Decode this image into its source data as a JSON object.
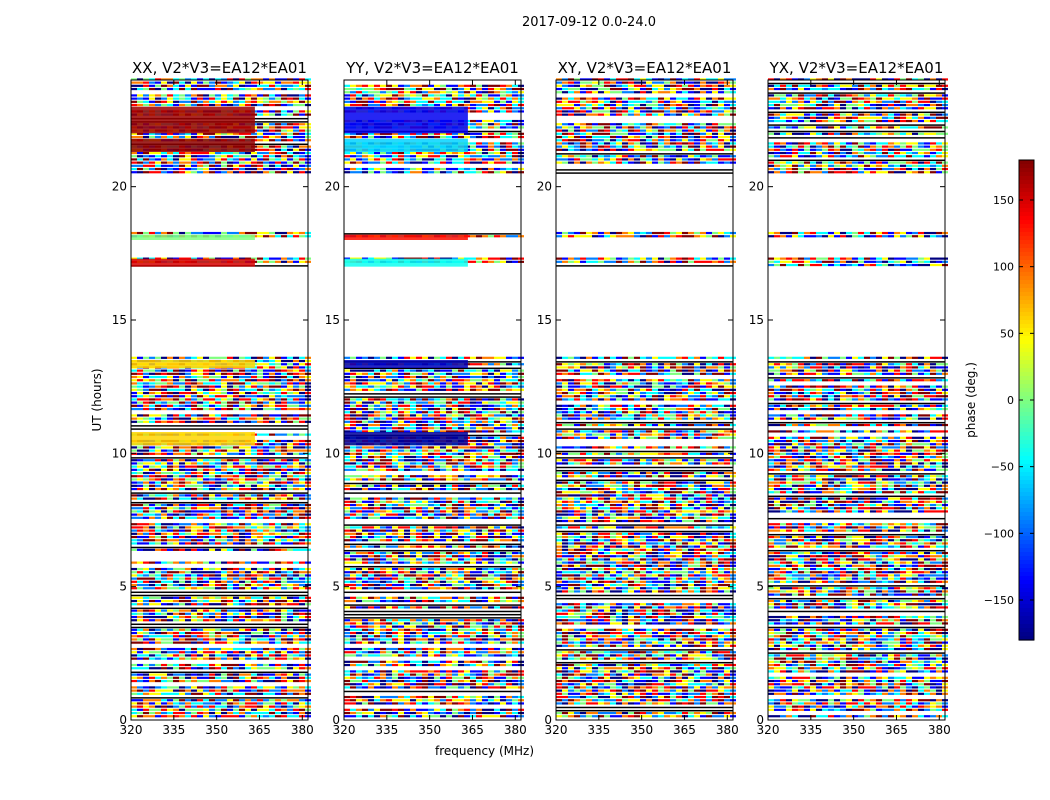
{
  "figure": {
    "suptitle": "2017-09-12 0.0-24.0"
  },
  "colors": {
    "background": "#ffffff",
    "axes": "#000000",
    "noise_palette": [
      "#00007f",
      "#0000ff",
      "#007fff",
      "#00ffff",
      "#7fff7f",
      "#ffff00",
      "#ff7f00",
      "#ff0000",
      "#7f0000"
    ]
  },
  "chart_data": [
    {
      "type": "heatmap",
      "title": "XX, V2*V3=EA12*EA01",
      "xlabel": "",
      "ylabel": "UT (hours)",
      "xlim": [
        320,
        382
      ],
      "ylim": [
        0,
        24
      ],
      "xticks": [
        320,
        335,
        350,
        365,
        380
      ],
      "yticks": [
        0,
        5,
        10,
        15,
        20
      ],
      "colormap": "jet",
      "cbar_range": [
        -180,
        180
      ],
      "bright_phase_blocks": [
        {
          "y": [
            10.3,
            10.8
          ],
          "phase": 60
        },
        {
          "y": [
            13.2,
            13.5
          ],
          "phase": 60
        },
        {
          "y": [
            17.0,
            17.3
          ],
          "phase": 150
        },
        {
          "y": [
            18.0,
            18.2
          ],
          "phase": 0
        },
        {
          "y": [
            21.3,
            21.8
          ],
          "phase": 175
        },
        {
          "y": [
            22.0,
            23.0
          ],
          "phase": 170
        }
      ]
    },
    {
      "type": "heatmap",
      "title": "YY, V2*V3=EA12*EA01",
      "xlabel": "frequency (MHz)",
      "ylabel": "",
      "xlim": [
        320,
        382
      ],
      "ylim": [
        0,
        24
      ],
      "xticks": [
        320,
        335,
        350,
        365,
        380
      ],
      "yticks": [
        0,
        5,
        10,
        15,
        20
      ],
      "colormap": "jet",
      "cbar_range": [
        -180,
        180
      ],
      "bright_phase_blocks": [
        {
          "y": [
            10.3,
            10.8
          ],
          "phase": -170
        },
        {
          "y": [
            13.2,
            13.5
          ],
          "phase": -160
        },
        {
          "y": [
            17.0,
            17.3
          ],
          "phase": -40
        },
        {
          "y": [
            18.0,
            18.2
          ],
          "phase": 130
        },
        {
          "y": [
            21.3,
            21.8
          ],
          "phase": -60
        },
        {
          "y": [
            22.0,
            23.0
          ],
          "phase": -140
        }
      ]
    },
    {
      "type": "heatmap",
      "title": "XY, V2*V3=EA12*EA01",
      "xlabel": "",
      "ylabel": "",
      "xlim": [
        320,
        382
      ],
      "ylim": [
        0,
        24
      ],
      "xticks": [
        320,
        335,
        350,
        365,
        380
      ],
      "yticks": [
        0,
        5,
        10,
        15,
        20
      ],
      "colormap": "jet",
      "cbar_range": [
        -180,
        180
      ]
    },
    {
      "type": "heatmap",
      "title": "YX, V2*V3=EA12*EA01",
      "xlabel": "",
      "ylabel": "",
      "xlim": [
        320,
        382
      ],
      "ylim": [
        0,
        24
      ],
      "xticks": [
        320,
        335,
        350,
        365,
        380
      ],
      "yticks": [
        0,
        5,
        10,
        15,
        20
      ],
      "colormap": "jet",
      "cbar_range": [
        -180,
        180
      ]
    }
  ],
  "colorbar": {
    "label": "phase (deg.)",
    "range": [
      -180,
      180
    ],
    "ticks": [
      -150,
      -100,
      -50,
      0,
      50,
      100,
      150
    ],
    "tick_labels": [
      "−150",
      "−100",
      "−50",
      "0",
      "50",
      "100",
      "150"
    ],
    "colormap": "jet"
  }
}
